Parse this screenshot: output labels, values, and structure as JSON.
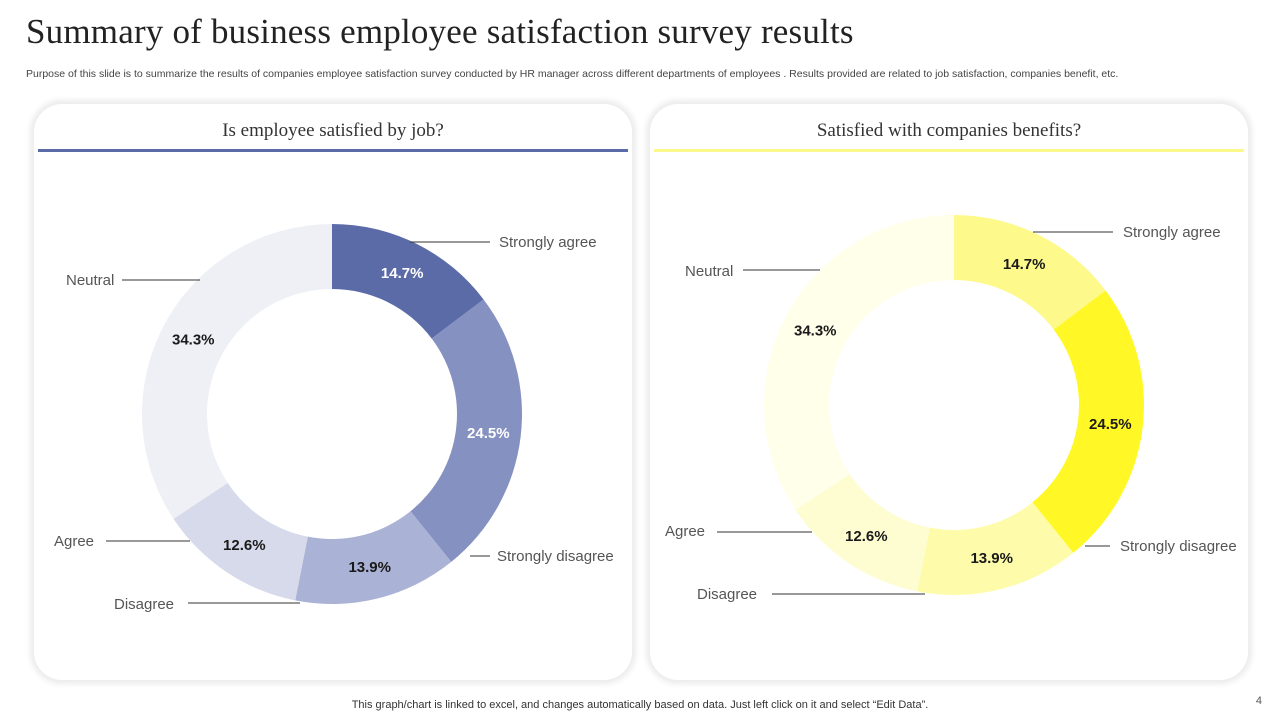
{
  "title": "Summary of business employee satisfaction survey results",
  "subtitle": "Purpose of this slide is to summarize the results of  companies employee satisfaction survey conducted by HR manager across different departments of employees . Results provided are related to job satisfaction, companies benefit, etc.",
  "footer": "This graph/chart is linked to excel, and changes automatically based on data. Just left click on it and select “Edit Data”.",
  "page_number": "4",
  "chart_data": [
    {
      "type": "pie",
      "donut": true,
      "title": "Is employee satisfied by job?",
      "accent": "#5B6BA8",
      "categories": [
        "Strongly agree",
        "Strongly disagree",
        "Disagree",
        "Agree",
        "Neutral"
      ],
      "values": [
        14.7,
        24.5,
        13.9,
        12.6,
        34.3
      ],
      "data_labels": [
        "14.7%",
        "24.5%",
        "13.9%",
        "12.6%",
        "34.3%"
      ],
      "colors": [
        "#5B6BA8",
        "#8591C0",
        "#AAB2D5",
        "#D6DAEA",
        "#EEF0F6"
      ],
      "label_colors": [
        "#ffffff",
        "#ffffff",
        "#1a1a1a",
        "#1a1a1a",
        "#1a1a1a"
      ]
    },
    {
      "type": "pie",
      "donut": true,
      "title": "Satisfied with companies benefits?",
      "accent": "#FBF98A",
      "categories": [
        "Strongly agree",
        "Strongly disagree",
        "Disagree",
        "Agree",
        "Neutral"
      ],
      "values": [
        14.7,
        24.5,
        13.9,
        12.6,
        34.3
      ],
      "data_labels": [
        "14.7%",
        "24.5%",
        "13.9%",
        "12.6%",
        "34.3%"
      ],
      "colors": [
        "#FDF98A",
        "#FFF826",
        "#FEFCAA",
        "#FEFDD2",
        "#FFFFEA"
      ],
      "label_colors": [
        "#1a1a1a",
        "#1a1a1a",
        "#1a1a1a",
        "#1a1a1a",
        "#1a1a1a"
      ]
    }
  ]
}
